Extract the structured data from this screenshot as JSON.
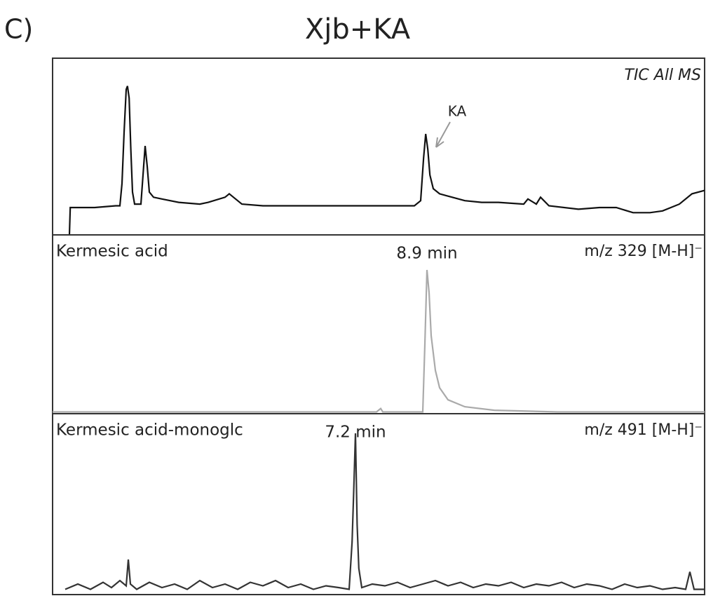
{
  "figure": {
    "label": "C)",
    "title": "Xjb+KA"
  },
  "chart_data": [
    {
      "type": "line",
      "corner_label": "TIC All MS",
      "annotation": "KA",
      "color": "#111",
      "xlim": [
        0,
        15.5
      ],
      "ylim": [
        0,
        100
      ],
      "x": [
        0.4,
        0.42,
        1.0,
        1.5,
        1.6,
        1.65,
        1.7,
        1.75,
        1.78,
        1.82,
        1.86,
        1.9,
        1.95,
        2.1,
        2.15,
        2.2,
        2.25,
        2.3,
        2.4,
        2.6,
        3.0,
        3.5,
        3.7,
        4.1,
        4.2,
        4.3,
        4.5,
        5.0,
        6.0,
        7.0,
        8.0,
        8.6,
        8.75,
        8.82,
        8.87,
        8.92,
        8.97,
        9.05,
        9.2,
        9.5,
        9.8,
        10.2,
        10.6,
        11.2,
        11.3,
        11.5,
        11.6,
        11.8,
        12.5,
        13.0,
        13.4,
        13.8,
        14.2,
        14.5,
        14.9,
        15.2,
        15.5
      ],
      "values": [
        0,
        16,
        16,
        17,
        17,
        30,
        60,
        85,
        87,
        80,
        50,
        25,
        18,
        18,
        35,
        52,
        40,
        25,
        22,
        21,
        19,
        18,
        19,
        22,
        24,
        22,
        18,
        17,
        17,
        17,
        17,
        17,
        20,
        45,
        59,
        50,
        35,
        27,
        24,
        22,
        20,
        19,
        19,
        18,
        21,
        18,
        22,
        17,
        15,
        16,
        16,
        13,
        13,
        14,
        18,
        24,
        26
      ]
    },
    {
      "type": "line",
      "label": "Kermesic acid",
      "peak_label": "8.9 min",
      "ion": "m/z 329 [M-H]⁻",
      "color": "#aaa",
      "xlim": [
        0,
        15.5
      ],
      "ylim": [
        0,
        100
      ],
      "x": [
        0,
        7.7,
        7.8,
        7.85,
        8.8,
        8.85,
        8.9,
        8.95,
        9.0,
        9.1,
        9.2,
        9.4,
        9.8,
        10.5,
        12,
        15.5
      ],
      "values": [
        1,
        1,
        3,
        1,
        1,
        40,
        83,
        70,
        45,
        25,
        15,
        8,
        4,
        2,
        1,
        1
      ]
    },
    {
      "type": "line",
      "label": "Kermesic acid-monoglc",
      "peak_label": "7.2 min",
      "ion": "m/z 491 [M-H]⁻",
      "color": "#333",
      "xlim": [
        0,
        15.5
      ],
      "ylim": [
        0,
        100
      ],
      "x": [
        0.3,
        0.6,
        0.9,
        1.2,
        1.4,
        1.6,
        1.75,
        1.8,
        1.85,
        2.0,
        2.3,
        2.6,
        2.9,
        3.2,
        3.5,
        3.8,
        4.1,
        4.4,
        4.7,
        5.0,
        5.3,
        5.6,
        5.9,
        6.2,
        6.5,
        6.8,
        7.05,
        7.12,
        7.16,
        7.2,
        7.24,
        7.28,
        7.35,
        7.6,
        7.9,
        8.2,
        8.5,
        8.8,
        9.1,
        9.4,
        9.7,
        10.0,
        10.3,
        10.6,
        10.9,
        11.2,
        11.5,
        11.8,
        12.1,
        12.4,
        12.7,
        13.0,
        13.3,
        13.6,
        13.9,
        14.2,
        14.5,
        14.8,
        15.05,
        15.15,
        15.25,
        15.5
      ],
      "values": [
        3,
        6,
        3,
        7,
        4,
        8,
        5,
        20,
        6,
        3,
        7,
        4,
        6,
        3,
        8,
        4,
        6,
        3,
        7,
        5,
        8,
        4,
        6,
        3,
        5,
        4,
        3,
        30,
        60,
        92,
        40,
        15,
        4,
        6,
        5,
        7,
        4,
        6,
        8,
        5,
        7,
        4,
        6,
        5,
        7,
        4,
        6,
        5,
        7,
        4,
        6,
        5,
        3,
        6,
        4,
        5,
        3,
        4,
        3,
        13,
        3,
        3
      ]
    }
  ]
}
